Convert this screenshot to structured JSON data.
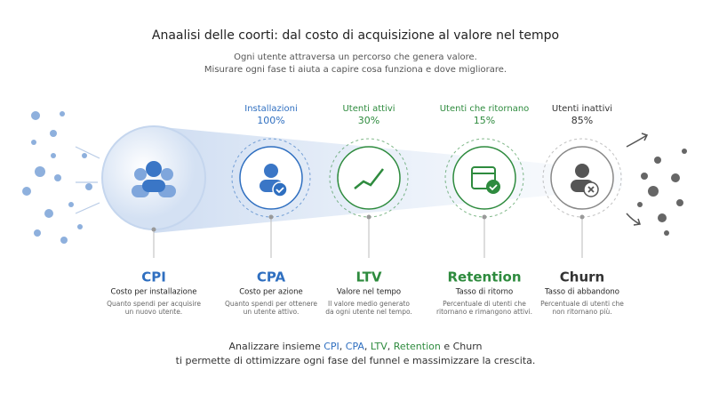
{
  "header": {
    "title": "Anaalisi delle coorti: dal costo di acquisizione al valore nel tempo",
    "subtitle": [
      "Ogni utente attraversa un percorso che genera valore.",
      "Misurare ogni fase ti aiuta a capire cosa funziona e dove migliorare."
    ]
  },
  "stages": [
    {
      "metric": "CPI",
      "name": "Costo per installazione",
      "desc": [
        "Quanto spendi per acquisire",
        "un nuovo utente."
      ]
    },
    {
      "label": "Installazioni",
      "pct": "100%",
      "metric": "CPA",
      "name": "Costo per azione",
      "desc": [
        "Quanto spendi per ottenere",
        "un utente attivo."
      ]
    },
    {
      "label": "Utenti attivi",
      "pct": "30%",
      "metric": "LTV",
      "name": "Valore nel tempo",
      "desc": [
        "Il valore medio generato",
        "da ogni utente nel tempo."
      ]
    },
    {
      "label": "Utenti che ritornano",
      "pct": "15%",
      "metric": "Retention",
      "name": "Tasso di ritorno",
      "desc": [
        "Percentuale di utenti che",
        "ritornano e rimangono attivi."
      ]
    },
    {
      "label": "Utenti inattivi",
      "pct": "85%",
      "metric": "Churn",
      "name": "Tasso di abbandono",
      "desc": [
        "Percentuale di utenti che",
        "non ritornano più."
      ]
    }
  ],
  "footer": {
    "line1": [
      "Analizzare insieme ",
      "CPI",
      ", ",
      "CPA",
      ", ",
      "LTV",
      ", ",
      "Retention",
      " e ",
      "Churn"
    ],
    "line2": "ti permette di ottimizzare ogni fase del funnel e massimizzare la crescita."
  }
}
